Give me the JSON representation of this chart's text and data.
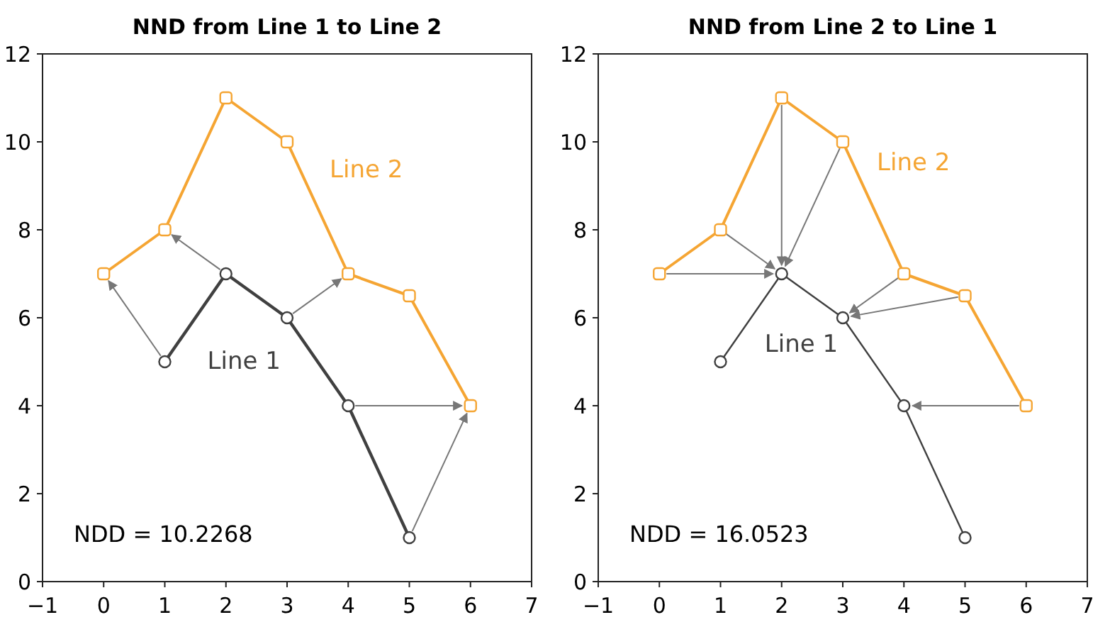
{
  "chart_data": [
    {
      "type": "line",
      "title": "NND from Line 1 to Line 2",
      "xlim": [
        -1,
        7
      ],
      "xticks": [
        -1,
        0,
        1,
        2,
        3,
        4,
        5,
        6,
        7
      ],
      "ylim": [
        0,
        12
      ],
      "yticks": [
        0,
        2,
        4,
        6,
        8,
        10,
        12
      ],
      "annotations": [
        "NDD = 10.2268"
      ],
      "series": [
        {
          "name": "Line 1",
          "color": "#404040",
          "marker": "circle",
          "x": [
            1,
            2,
            3,
            4,
            5
          ],
          "values": [
            5,
            7,
            6,
            4,
            1
          ]
        },
        {
          "name": "Line 2",
          "color": "#f5a533",
          "marker": "square",
          "x": [
            0,
            1,
            2,
            3,
            4,
            5,
            6
          ],
          "values": [
            7,
            8,
            11,
            10,
            7,
            6.5,
            4
          ]
        }
      ]
    },
    {
      "type": "line",
      "title": "NND from Line 2 to Line 1",
      "xlim": [
        -1,
        7
      ],
      "xticks": [
        -1,
        0,
        1,
        2,
        3,
        4,
        5,
        6,
        7
      ],
      "ylim": [
        0,
        12
      ],
      "yticks": [
        0,
        2,
        4,
        6,
        8,
        10,
        12
      ],
      "annotations": [
        "NDD = 16.0523"
      ],
      "series": [
        {
          "name": "Line 2",
          "color": "#f5a533",
          "marker": "square",
          "x": [
            0,
            1,
            2,
            3,
            4,
            5,
            6
          ],
          "values": [
            7,
            8,
            11,
            10,
            7,
            6.5,
            4
          ]
        },
        {
          "name": "Line 1",
          "color": "#404040",
          "marker": "circle",
          "x": [
            1,
            2,
            3,
            4,
            5
          ],
          "values": [
            5,
            7,
            6,
            4,
            1
          ]
        }
      ]
    }
  ]
}
